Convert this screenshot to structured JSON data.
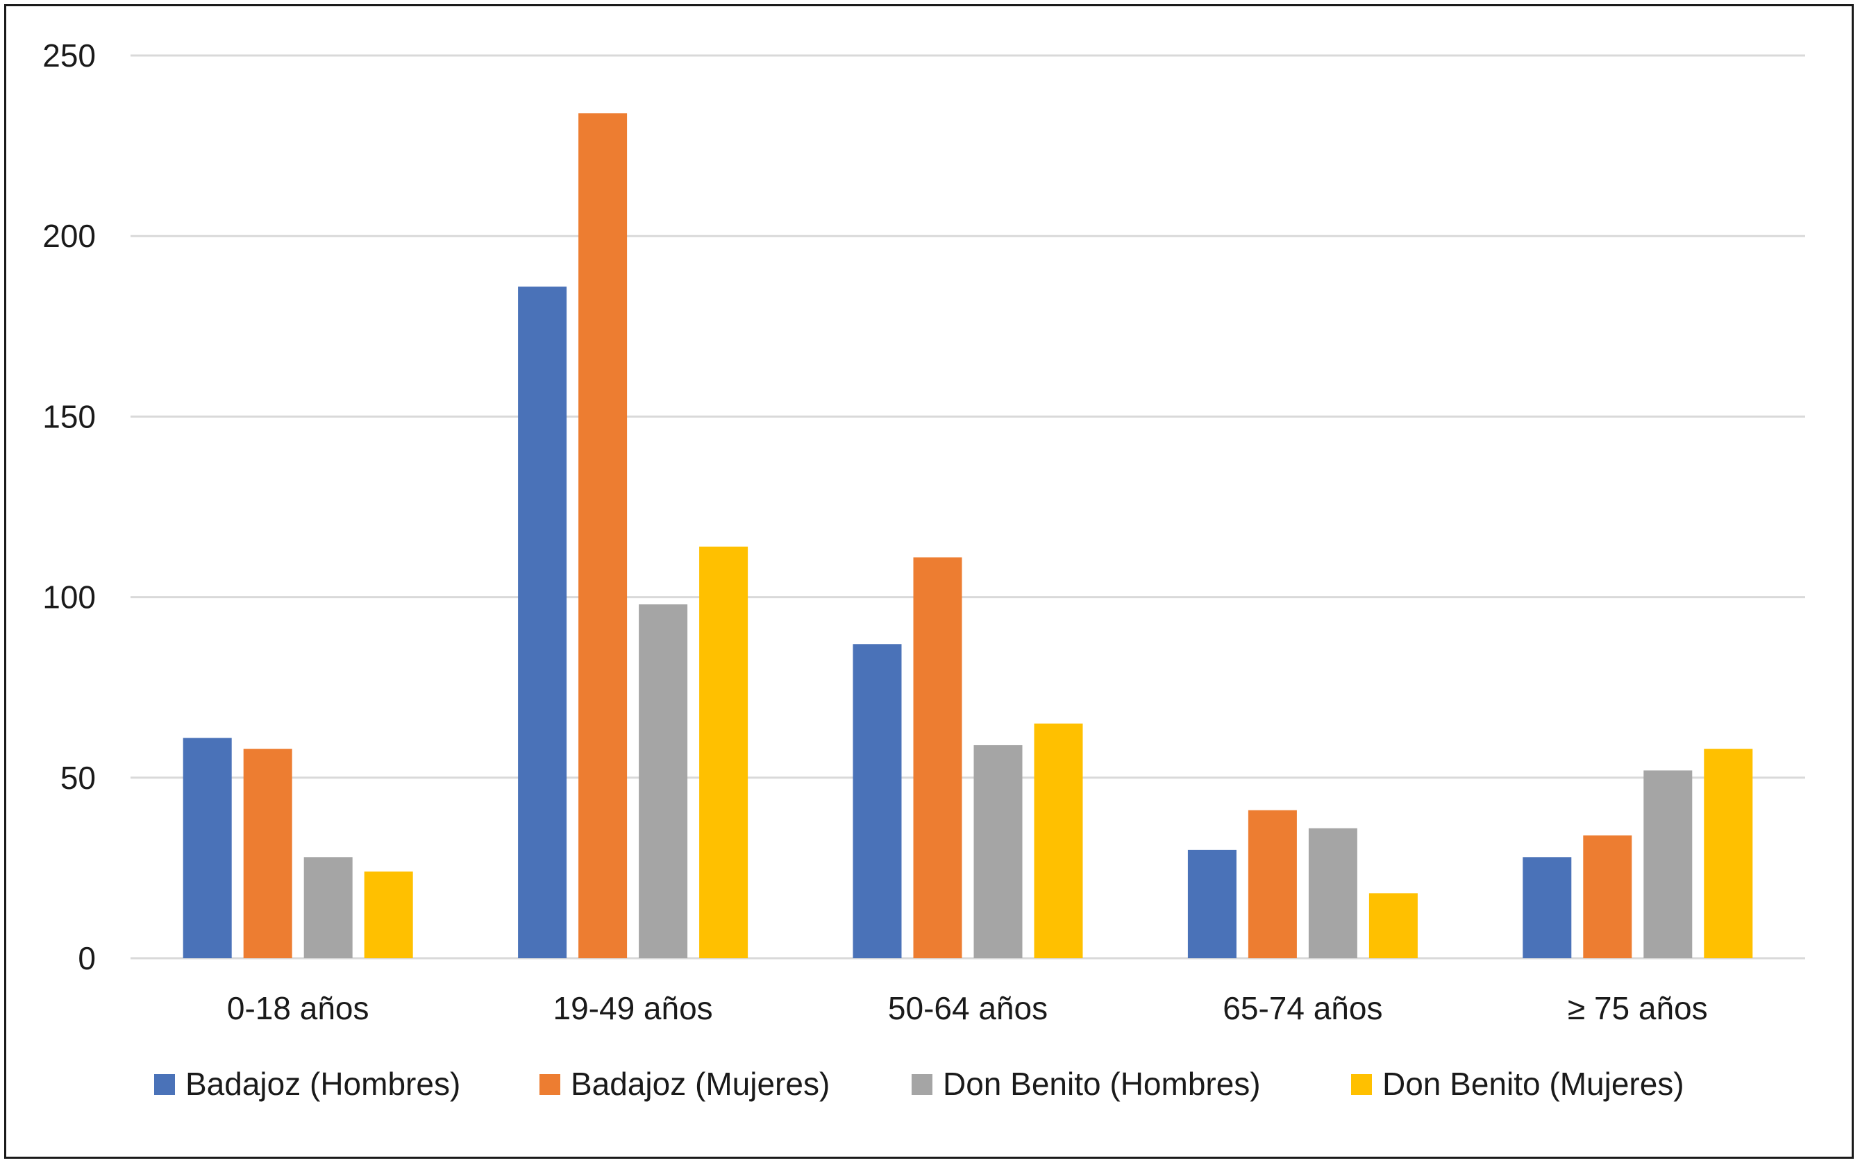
{
  "chart_data": {
    "type": "bar",
    "title": "",
    "xlabel": "",
    "ylabel": "",
    "ylim": [
      0,
      250
    ],
    "yticks": [
      0,
      50,
      100,
      150,
      200,
      250
    ],
    "grid": true,
    "legend_position": "bottom",
    "categories": [
      "0-18 años",
      "19-49 años",
      "50-64 años",
      "65-74 años",
      "≥ 75 años"
    ],
    "series": [
      {
        "name": "Badajoz (Hombres)",
        "color": "#4a72b8",
        "values": [
          61,
          186,
          87,
          30,
          28
        ]
      },
      {
        "name": "Badajoz (Mujeres)",
        "color": "#ed7d31",
        "values": [
          58,
          234,
          111,
          41,
          34
        ]
      },
      {
        "name": "Don Benito (Hombres)",
        "color": "#a5a5a5",
        "values": [
          28,
          98,
          59,
          36,
          52
        ]
      },
      {
        "name": "Don Benito (Mujeres)",
        "color": "#ffc000",
        "values": [
          24,
          114,
          65,
          18,
          58
        ]
      }
    ]
  }
}
